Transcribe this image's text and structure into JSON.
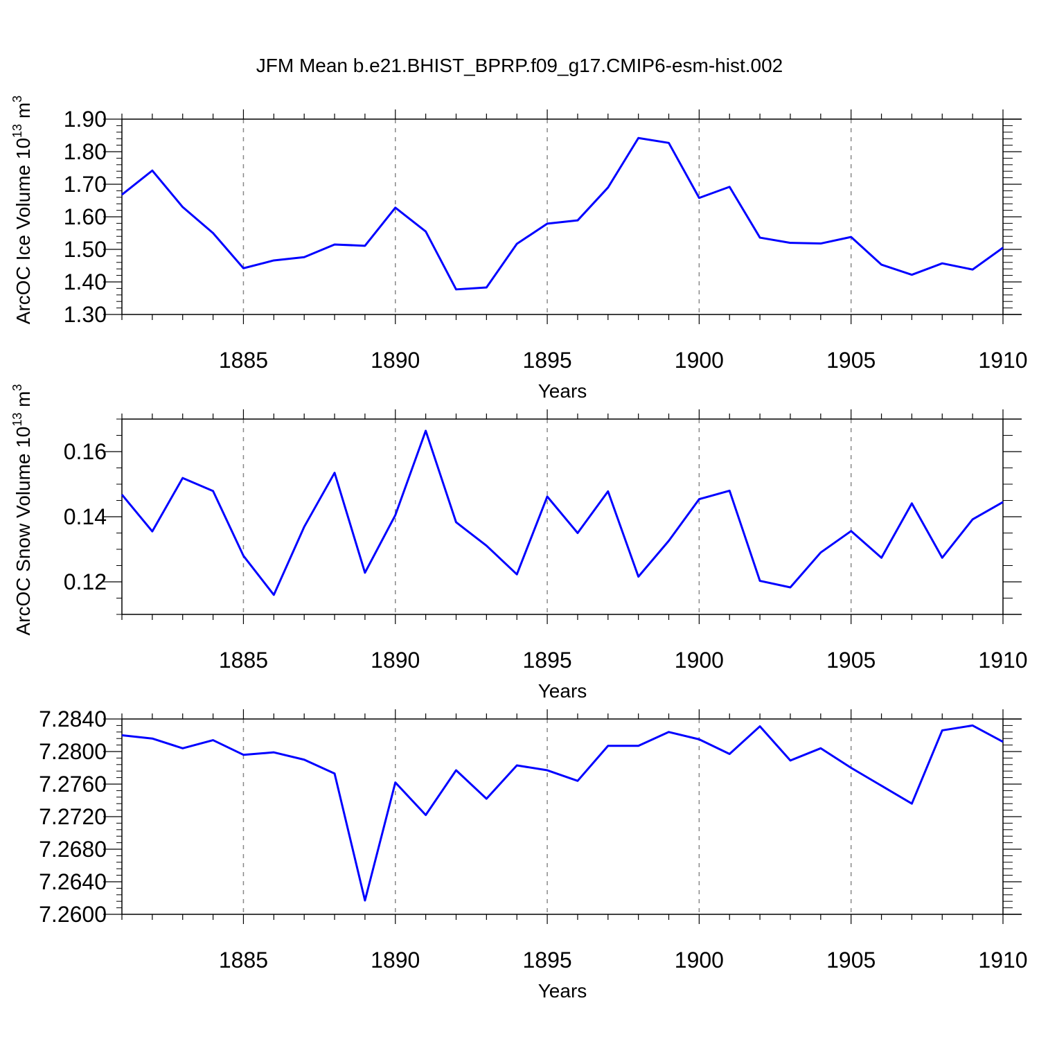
{
  "title": "JFM Mean b.e21.BHIST_BPRP.f09_g17.CMIP6-esm-hist.002",
  "colors": {
    "line": "#0000ff",
    "axis": "#000000",
    "grid": "#888888"
  },
  "chart_data": [
    {
      "type": "line",
      "name": "ice-volume",
      "ylabel": "ArcOC Ice Volume 10",
      "ylabel_exp": "13",
      "ylabel_unit": " m",
      "ylabel_unit_exp": "3",
      "xlabel": "Years",
      "xlim": [
        1881,
        1910
      ],
      "ylim": [
        1.3,
        1.9
      ],
      "yticks": [
        1.3,
        1.4,
        1.5,
        1.6,
        1.7,
        1.8,
        1.9
      ],
      "ytick_labels": [
        "1.30",
        "1.40",
        "1.50",
        "1.60",
        "1.70",
        "1.80",
        "1.90"
      ],
      "yminor_step": 0.02,
      "xticks": [
        1885,
        1890,
        1895,
        1900,
        1905,
        1910
      ],
      "xtick_labels": [
        "1885",
        "1890",
        "1895",
        "1900",
        "1905",
        "1910"
      ],
      "x": [
        1881,
        1882,
        1883,
        1884,
        1885,
        1886,
        1887,
        1888,
        1889,
        1890,
        1891,
        1892,
        1893,
        1894,
        1895,
        1896,
        1897,
        1898,
        1899,
        1900,
        1901,
        1902,
        1903,
        1904,
        1905,
        1906,
        1907,
        1908,
        1909,
        1910
      ],
      "values": [
        1.668,
        1.742,
        1.63,
        1.55,
        1.442,
        1.466,
        1.476,
        1.515,
        1.511,
        1.628,
        1.555,
        1.377,
        1.383,
        1.517,
        1.579,
        1.589,
        1.69,
        1.842,
        1.827,
        1.658,
        1.692,
        1.536,
        1.52,
        1.518,
        1.538,
        1.453,
        1.422,
        1.457,
        1.438,
        1.505
      ]
    },
    {
      "type": "line",
      "name": "snow-volume",
      "ylabel": "ArcOC Snow Volume 10",
      "ylabel_exp": "13",
      "ylabel_unit": " m",
      "ylabel_unit_exp": "3",
      "xlabel": "Years",
      "xlim": [
        1881,
        1910
      ],
      "ylim": [
        0.11,
        0.17
      ],
      "yticks": [
        0.12,
        0.14,
        0.16
      ],
      "ytick_labels": [
        "0.12",
        "0.14",
        "0.16"
      ],
      "yminor_step": 0.005,
      "xticks": [
        1885,
        1890,
        1895,
        1900,
        1905,
        1910
      ],
      "xtick_labels": [
        "1885",
        "1890",
        "1895",
        "1900",
        "1905",
        "1910"
      ],
      "x": [
        1881,
        1882,
        1883,
        1884,
        1885,
        1886,
        1887,
        1888,
        1889,
        1890,
        1891,
        1892,
        1893,
        1894,
        1895,
        1896,
        1897,
        1898,
        1899,
        1900,
        1901,
        1902,
        1903,
        1904,
        1905,
        1906,
        1907,
        1908,
        1909,
        1910
      ],
      "values": [
        0.1468,
        0.1355,
        0.1519,
        0.1479,
        0.128,
        0.116,
        0.1369,
        0.1535,
        0.1228,
        0.1405,
        0.1664,
        0.1383,
        0.1311,
        0.1223,
        0.1462,
        0.135,
        0.1478,
        0.1216,
        0.1326,
        0.1454,
        0.148,
        0.1203,
        0.1183,
        0.129,
        0.1356,
        0.1274,
        0.1441,
        0.1274,
        0.1392,
        0.1445
      ]
    },
    {
      "type": "line",
      "name": "third-series",
      "ylabel": "",
      "xlabel": "Years",
      "xlim": [
        1881,
        1910
      ],
      "ylim": [
        7.26,
        7.284
      ],
      "yticks": [
        7.26,
        7.264,
        7.268,
        7.272,
        7.276,
        7.28,
        7.284
      ],
      "ytick_labels": [
        "7.2600",
        "7.2640",
        "7.2680",
        "7.2720",
        "7.2760",
        "7.2800",
        "7.2840"
      ],
      "yminor_step": 0.0008,
      "xticks": [
        1885,
        1890,
        1895,
        1900,
        1905,
        1910
      ],
      "xtick_labels": [
        "1885",
        "1890",
        "1895",
        "1900",
        "1905",
        "1910"
      ],
      "x": [
        1881,
        1882,
        1883,
        1884,
        1885,
        1886,
        1887,
        1888,
        1889,
        1890,
        1891,
        1892,
        1893,
        1894,
        1895,
        1896,
        1897,
        1898,
        1899,
        1900,
        1901,
        1902,
        1903,
        1904,
        1905,
        1906,
        1907,
        1908,
        1909,
        1910
      ],
      "values": [
        7.282,
        7.2816,
        7.2804,
        7.2814,
        7.2796,
        7.2799,
        7.279,
        7.2773,
        7.2617,
        7.2762,
        7.2722,
        7.2777,
        7.2742,
        7.2783,
        7.2777,
        7.2764,
        7.2807,
        7.2807,
        7.2824,
        7.2815,
        7.2797,
        7.2831,
        7.2789,
        7.2804,
        7.278,
        7.2758,
        7.2736,
        7.2826,
        7.2832,
        7.2812
      ]
    }
  ]
}
